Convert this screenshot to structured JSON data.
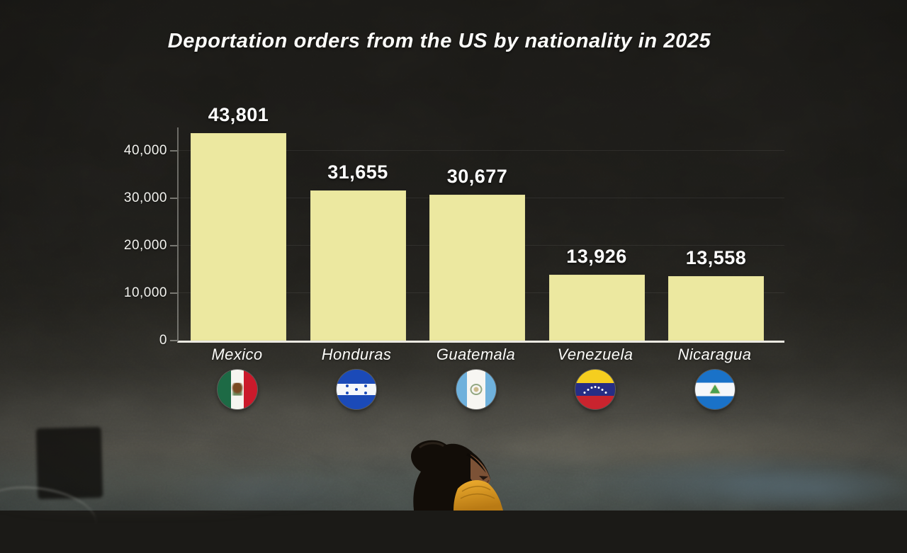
{
  "chart_data": {
    "type": "bar",
    "title": "Deportation orders from the US by nationality in 2025",
    "categories": [
      "Mexico",
      "Honduras",
      "Guatemala",
      "Venezuela",
      "Nicaragua"
    ],
    "values": [
      43801,
      31655,
      30677,
      13926,
      13558
    ],
    "value_labels": [
      "43,801",
      "31,655",
      "30,677",
      "13,926",
      "13,558"
    ],
    "flag_icons": [
      "mexico-flag-icon",
      "honduras-flag-icon",
      "guatemala-flag-icon",
      "venezuela-flag-icon",
      "nicaragua-flag-icon"
    ],
    "xlabel": "",
    "ylabel": "",
    "y_ticks": [
      0,
      10000,
      20000,
      30000,
      40000
    ],
    "y_tick_labels": [
      "0",
      "10,000",
      "20,000",
      "30,000",
      "40,000"
    ],
    "ylim": [
      0,
      45000
    ],
    "grid": true,
    "legend": false,
    "bar_color": "#ece8a0",
    "text_color": "#ffffff",
    "axis_color": "#eceae2"
  },
  "background": {
    "type": "photo",
    "subject": "woman in profile wearing an orange face mask against a dark grunge wall"
  }
}
